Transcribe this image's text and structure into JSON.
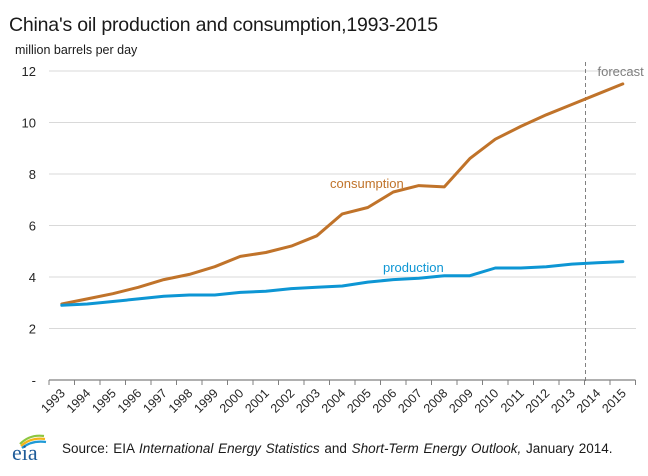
{
  "header": {
    "title": "China's oil production and consumption,1993-2015",
    "units": "million barrels per day"
  },
  "footer": {
    "logo_text": "eia",
    "source_prefix": "Source: EIA ",
    "source_italic_1": "International Energy Statistics",
    "source_mid": " and ",
    "source_italic_2": "Short-Term Energy Outlook,",
    "source_suffix": " January 2014."
  },
  "colors": {
    "consumption": "#C0732A",
    "production": "#0D96D4",
    "gridline": "#D9D9D9",
    "axis": "#808080",
    "forecast_line": "#808080",
    "forecast_text": "#7F7F7F"
  },
  "chart_data": {
    "type": "line",
    "title": "China's oil production and consumption,1993-2015",
    "xlabel": "",
    "ylabel": "million barrels per day",
    "ylim": [
      0,
      12
    ],
    "yticks": [
      0,
      2,
      4,
      6,
      8,
      10,
      12
    ],
    "ytick_labels": [
      "-",
      "2",
      "4",
      "6",
      "8",
      "10",
      "12"
    ],
    "grid": true,
    "legend": "inline labels",
    "categories": [
      "1993",
      "1994",
      "1995",
      "1996",
      "1997",
      "1998",
      "1999",
      "2000",
      "2001",
      "2002",
      "2003",
      "2004",
      "2005",
      "2006",
      "2007",
      "2008",
      "2009",
      "2010",
      "2011",
      "2012",
      "2013",
      "2014",
      "2015"
    ],
    "series": [
      {
        "name": "consumption",
        "label": "consumption",
        "values": [
          2.95,
          3.15,
          3.35,
          3.6,
          3.9,
          4.1,
          4.4,
          4.8,
          4.95,
          5.2,
          5.6,
          6.45,
          6.7,
          7.3,
          7.55,
          7.5,
          8.6,
          9.35,
          9.85,
          10.3,
          10.7,
          11.1,
          11.5
        ]
      },
      {
        "name": "production",
        "label": "production",
        "values": [
          2.9,
          2.95,
          3.05,
          3.15,
          3.25,
          3.3,
          3.3,
          3.4,
          3.45,
          3.55,
          3.6,
          3.65,
          3.8,
          3.9,
          3.95,
          4.05,
          4.05,
          4.35,
          4.35,
          4.4,
          4.5,
          4.55,
          4.6
        ]
      }
    ],
    "annotations": [
      {
        "text": "forecast",
        "type": "vertical-dashed-line",
        "between": [
          "2013",
          "2014"
        ]
      },
      {
        "text": "consumption",
        "series": "consumption",
        "near": "2006"
      },
      {
        "text": "production",
        "series": "production",
        "near": "2007"
      }
    ]
  }
}
